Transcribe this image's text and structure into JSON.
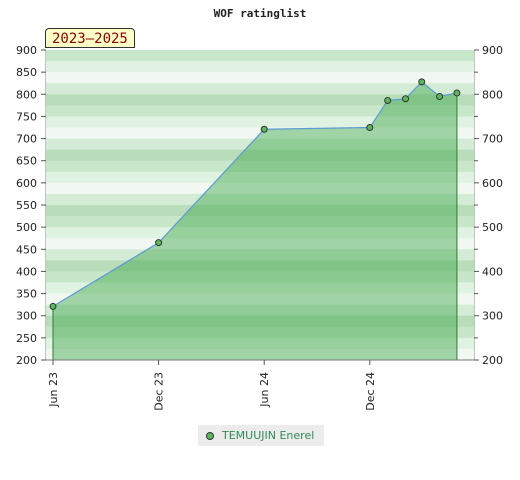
{
  "chart_data": {
    "type": "area",
    "title": "WOF ratinglist",
    "badge": "2023–2025",
    "ylim": [
      200,
      900
    ],
    "yticks": [
      200,
      250,
      300,
      350,
      400,
      450,
      500,
      550,
      600,
      650,
      700,
      750,
      800,
      850,
      900
    ],
    "yticks_right": [
      200,
      300,
      400,
      500,
      600,
      700,
      800,
      900
    ],
    "x_ticks": [
      {
        "label": "Jun 23",
        "date": "2023-06-01"
      },
      {
        "label": "Dec 23",
        "date": "2023-12-01"
      },
      {
        "label": "Jun 24",
        "date": "2024-06-01"
      },
      {
        "label": "Dec 24",
        "date": "2024-12-01"
      }
    ],
    "x_range": [
      "2023-06-01",
      "2025-05-15"
    ],
    "series": [
      {
        "name": "TEMUUJIN Enerel",
        "color": "#5cb85c",
        "line_color": "#5b9bd5",
        "points": [
          {
            "date": "2023-06-01",
            "value": 321
          },
          {
            "date": "2023-12-01",
            "value": 465
          },
          {
            "date": "2024-06-01",
            "value": 721
          },
          {
            "date": "2024-12-01",
            "value": 725
          },
          {
            "date": "2025-01-01",
            "value": 786
          },
          {
            "date": "2025-02-01",
            "value": 790
          },
          {
            "date": "2025-03-01",
            "value": 828
          },
          {
            "date": "2025-04-01",
            "value": 795
          },
          {
            "date": "2025-05-01",
            "value": 803
          }
        ]
      }
    ],
    "grid": false,
    "legend_position": "bottom-center"
  }
}
